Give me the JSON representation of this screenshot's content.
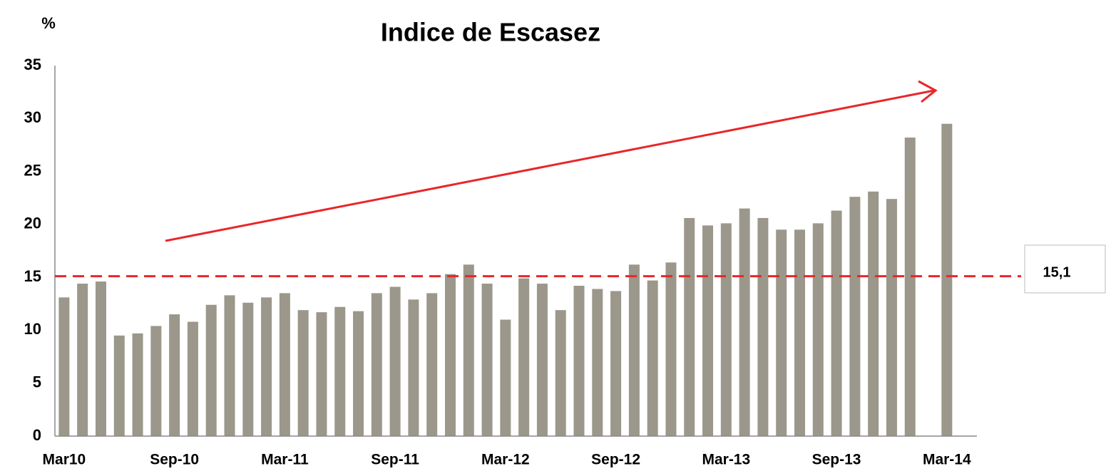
{
  "chart_data": {
    "type": "bar",
    "title": "Indice de Escasez",
    "y_unit": "%",
    "categories": [
      "Mar10",
      null,
      null,
      null,
      null,
      null,
      "Sep-10",
      null,
      null,
      null,
      null,
      null,
      "Mar-11",
      null,
      null,
      null,
      null,
      null,
      "Sep-11",
      null,
      null,
      null,
      null,
      null,
      "Mar-12",
      null,
      null,
      null,
      null,
      null,
      "Sep-12",
      null,
      null,
      null,
      null,
      null,
      "Mar-13",
      null,
      null,
      null,
      null,
      null,
      "Sep-13",
      null,
      null,
      null,
      null,
      null,
      "Mar-14"
    ],
    "values": [
      13.1,
      14.4,
      14.6,
      9.5,
      9.7,
      10.4,
      11.5,
      10.8,
      12.4,
      13.3,
      12.6,
      13.1,
      13.5,
      11.9,
      11.7,
      12.2,
      11.8,
      13.5,
      14.1,
      12.9,
      13.5,
      15.3,
      16.2,
      14.4,
      11.0,
      14.9,
      14.4,
      11.9,
      14.2,
      13.9,
      13.7,
      16.2,
      14.7,
      16.4,
      20.6,
      19.9,
      20.1,
      21.5,
      20.6,
      19.5,
      19.5,
      20.1,
      21.3,
      22.6,
      23.1,
      22.4,
      28.2,
      null,
      29.5
    ],
    "color": "#9b978a",
    "ylim": [
      0,
      35
    ],
    "yticks": [
      0,
      5,
      10,
      15,
      20,
      25,
      30,
      35
    ],
    "grid": false,
    "reference_line": {
      "value": 15.1,
      "label": "15,1",
      "color": "#e8262a"
    }
  }
}
